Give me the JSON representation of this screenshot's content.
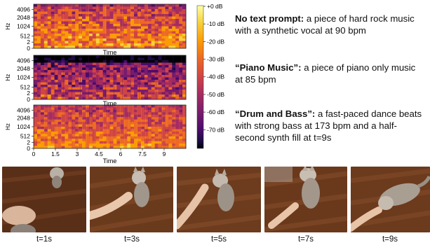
{
  "spectrograms": {
    "y_axis_label": "Hz",
    "x_axis_label": "Time",
    "y_ticks": [
      "4096",
      "2048",
      "1024",
      "512",
      "2",
      "0"
    ],
    "x_ticks": [
      "0",
      "1.5",
      "3",
      "4.5",
      "6",
      "7.5",
      "9"
    ],
    "colorbar_ticks": [
      "+0 dB",
      "-10 dB",
      "-20 dB",
      "-30 dB",
      "-40 dB",
      "-50 dB",
      "-60 dB",
      "-70 dB"
    ],
    "colormap": [
      "#000004",
      "#1b0c41",
      "#4a0c6b",
      "#781c6d",
      "#a52c60",
      "#cf4446",
      "#ed6925",
      "#fb9b06",
      "#f7d13d",
      "#fcffa4"
    ]
  },
  "captions": [
    {
      "title": "No text prompt:",
      "text": " a piece of hard rock music with a synthetic vocal at 90 bpm"
    },
    {
      "title": "“Piano Music”:",
      "text": "  a piece of piano only music at 85 bpm"
    },
    {
      "title": "“Drum and Bass”:",
      "text": " a fast-paced dance beats with strong bass at 173 bpm and a half-second synth fill at t=9s"
    }
  ],
  "frames": [
    {
      "label": "t=1s"
    },
    {
      "label": "t=3s"
    },
    {
      "label": "t=5s"
    },
    {
      "label": "t=7s"
    },
    {
      "label": "t=9s"
    }
  ],
  "colors": {
    "floor": "#6b3a1e",
    "floor_dark": "#3f1f0e",
    "cat": "#9a8f84",
    "hand": "#e7c4a8"
  }
}
